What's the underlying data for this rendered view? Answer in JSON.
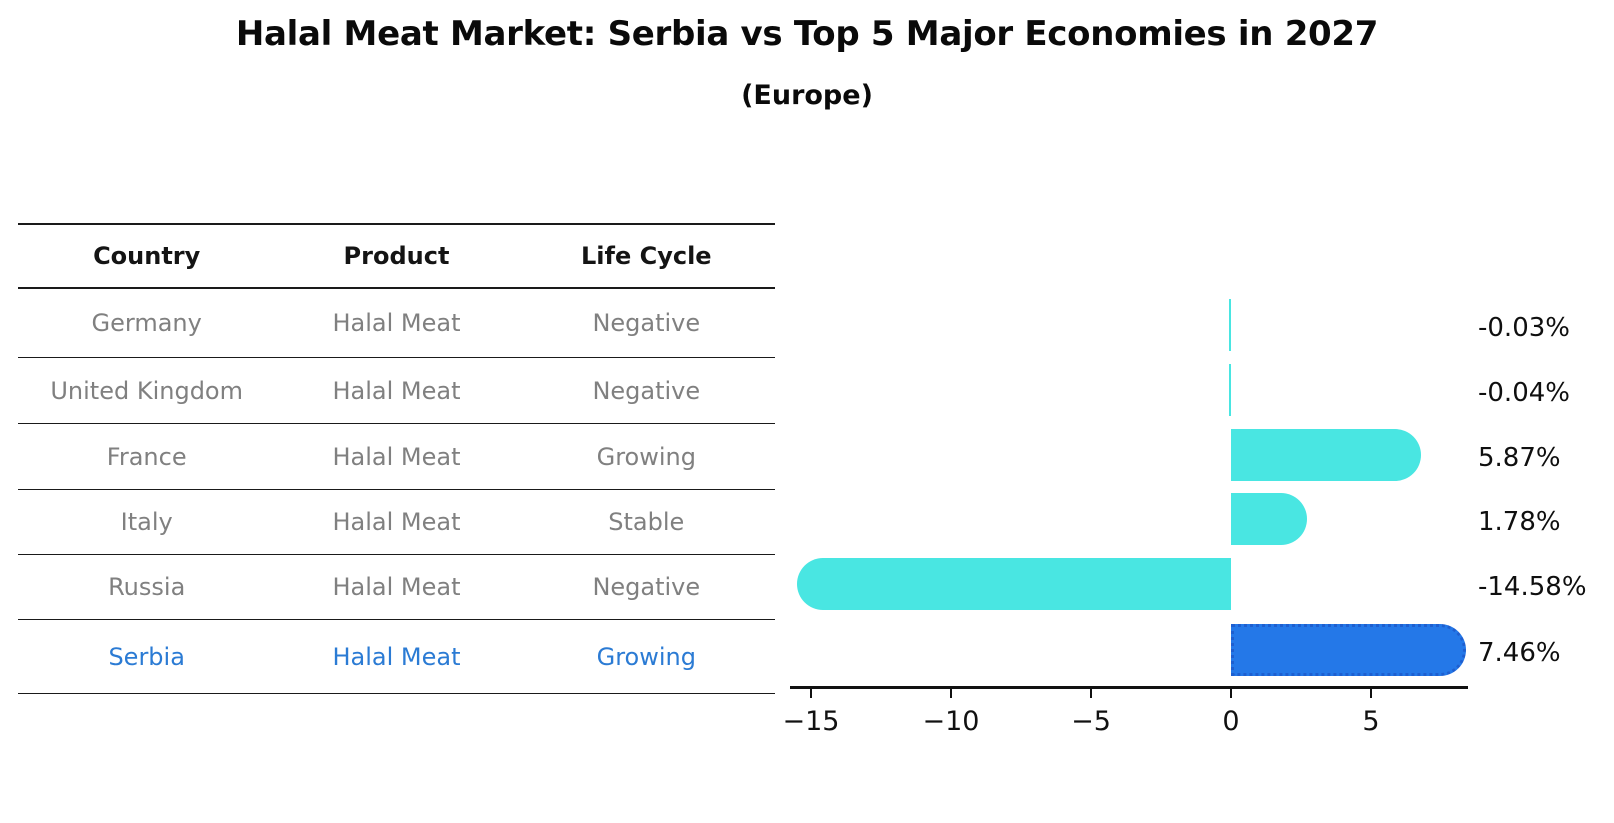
{
  "title": "Halal Meat Market: Serbia vs Top 5 Major Economies in 2027",
  "subtitle": "(Europe)",
  "table": {
    "headers": {
      "country": "Country",
      "product": "Product",
      "life_cycle": "Life Cycle"
    },
    "rows": [
      {
        "country": "Germany",
        "product": "Halal Meat",
        "life_cycle": "Negative",
        "highlighted": false
      },
      {
        "country": "United Kingdom",
        "product": "Halal Meat",
        "life_cycle": "Negative",
        "highlighted": false
      },
      {
        "country": "France",
        "product": "Halal Meat",
        "life_cycle": "Growing",
        "highlighted": false
      },
      {
        "country": "Italy",
        "product": "Halal Meat",
        "life_cycle": "Stable",
        "highlighted": false
      },
      {
        "country": "Russia",
        "product": "Halal Meat",
        "life_cycle": "Negative",
        "highlighted": false
      },
      {
        "country": "Serbia",
        "product": "Halal Meat",
        "life_cycle": "Growing",
        "highlighted": true
      }
    ]
  },
  "chart_data": {
    "type": "bar",
    "orientation": "horizontal",
    "categories": [
      "Germany",
      "United Kingdom",
      "France",
      "Italy",
      "Russia",
      "Serbia"
    ],
    "values": [
      -0.03,
      -0.04,
      5.87,
      1.78,
      -14.58,
      7.46
    ],
    "value_labels": [
      "-0.03%",
      "-0.04%",
      "5.87%",
      "1.78%",
      "-14.58%",
      "7.46%"
    ],
    "units": "percent CAGR",
    "highlight_category": "Serbia",
    "xticks": [
      -15,
      -10,
      -5,
      0,
      5
    ],
    "xtick_labels": [
      "−15",
      "−10",
      "−5",
      "0",
      "5"
    ],
    "xlim": [
      -15.8,
      8.5
    ],
    "grid": false,
    "legend": false,
    "colors": {
      "bar": "#49E6E2",
      "highlight_bar": "#2478E8",
      "highlight_border": "#1E5FD0",
      "highlight_text": "#2B7BD4"
    }
  }
}
